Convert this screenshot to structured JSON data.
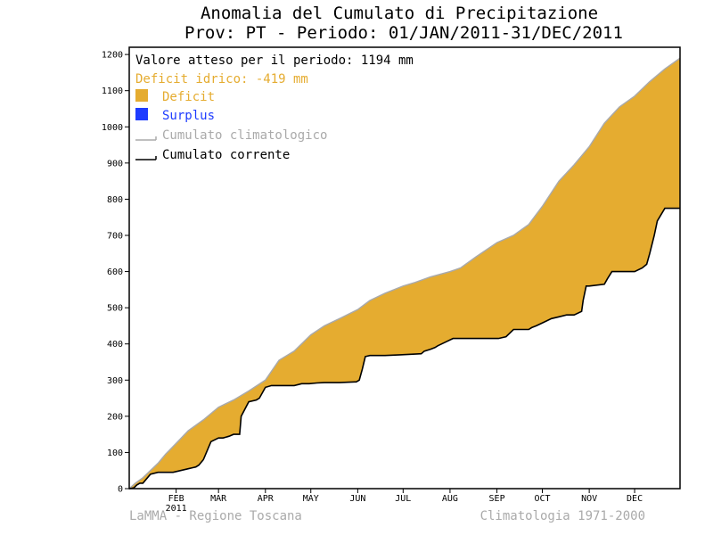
{
  "title_line1": "Anomalia del Cumulato di Precipitazione",
  "title_line2": "Prov: PT - Periodo: 01/JAN/2011-31/DEC/2011",
  "legend": {
    "expected_text": "Valore atteso per il periodo: 1194 mm",
    "deficit_text": "Deficit idrico: -419 mm",
    "deficit_label": "Deficit",
    "surplus_label": "Surplus",
    "climatological_label": "Cumulato climatologico",
    "current_label": "Cumulato corrente"
  },
  "footer_left": "LaMMA - Regione Toscana",
  "footer_right": "Climatologia 1971-2000",
  "colors": {
    "deficit": "#E5AC30",
    "surplus": "#1E3CFF",
    "climatological": "#AAAAAA",
    "current": "#000000",
    "deficit_text": "#E5AC30",
    "surplus_text": "#1E3CFF",
    "climatological_text": "#AAAAAA",
    "footer_text": "#AAAAAA"
  },
  "chart_data": {
    "type": "area",
    "title": "Anomalia del Cumulato di Precipitazione",
    "subtitle": "Prov: PT - Periodo: 01/JAN/2011-31/DEC/2011",
    "xlabel": "",
    "ylabel": "",
    "xlim": [
      1,
      365
    ],
    "ylim": [
      0,
      1220
    ],
    "y_ticks": [
      0,
      100,
      200,
      300,
      400,
      500,
      600,
      700,
      800,
      900,
      1000,
      1100,
      1200
    ],
    "x_ticks": [
      {
        "day": 32,
        "label": "FEB"
      },
      {
        "day": 60,
        "label": "MAR"
      },
      {
        "day": 91,
        "label": "APR"
      },
      {
        "day": 121,
        "label": "MAY"
      },
      {
        "day": 152,
        "label": "JUN"
      },
      {
        "day": 182,
        "label": "JUL"
      },
      {
        "day": 213,
        "label": "AUG"
      },
      {
        "day": 244,
        "label": "SEP"
      },
      {
        "day": 274,
        "label": "OCT"
      },
      {
        "day": 305,
        "label": "NOV"
      },
      {
        "day": 335,
        "label": "DEC"
      }
    ],
    "x_year_label": "2011",
    "expected_total_mm": 1194,
    "deficit_mm": -419,
    "grid": false,
    "legend_position": "top-left",
    "series": [
      {
        "name": "Cumulato climatologico",
        "x": [
          1,
          5,
          10,
          15,
          20,
          25,
          32,
          40,
          50,
          60,
          70,
          80,
          91,
          100,
          110,
          121,
          130,
          140,
          152,
          160,
          170,
          182,
          190,
          200,
          213,
          220,
          230,
          244,
          255,
          265,
          274,
          285,
          295,
          305,
          315,
          325,
          335,
          345,
          355,
          365
        ],
        "y": [
          0,
          15,
          30,
          50,
          70,
          95,
          125,
          160,
          190,
          225,
          245,
          270,
          300,
          355,
          380,
          425,
          450,
          470,
          495,
          520,
          540,
          560,
          570,
          585,
          600,
          610,
          640,
          680,
          700,
          730,
          780,
          850,
          895,
          945,
          1010,
          1055,
          1085,
          1125,
          1160,
          1190
        ]
      },
      {
        "name": "Cumulato corrente",
        "x": [
          1,
          4,
          6,
          8,
          10,
          15,
          20,
          25,
          30,
          35,
          40,
          43,
          45,
          47,
          50,
          55,
          60,
          63,
          67,
          70,
          74,
          75,
          80,
          85,
          87,
          91,
          95,
          100,
          105,
          110,
          115,
          120,
          125,
          130,
          140,
          145,
          150,
          151,
          153,
          155,
          157,
          160,
          170,
          180,
          190,
          194,
          196,
          200,
          203,
          205,
          210,
          215,
          225,
          230,
          240,
          245,
          250,
          255,
          257,
          259,
          265,
          267,
          270,
          275,
          280,
          285,
          290,
          295,
          300,
          301,
          303,
          305,
          315,
          317,
          320,
          325,
          330,
          335,
          340,
          343,
          345,
          348,
          350,
          355,
          360,
          365
        ],
        "y": [
          0,
          2,
          10,
          15,
          15,
          40,
          45,
          45,
          45,
          50,
          55,
          58,
          60,
          65,
          80,
          130,
          140,
          140,
          145,
          150,
          150,
          200,
          240,
          245,
          250,
          280,
          285,
          285,
          285,
          285,
          290,
          290,
          292,
          293,
          293,
          294,
          295,
          295,
          300,
          330,
          365,
          368,
          368,
          370,
          372,
          373,
          380,
          385,
          390,
          395,
          405,
          415,
          415,
          415,
          415,
          415,
          420,
          440,
          440,
          440,
          440,
          445,
          450,
          460,
          470,
          475,
          480,
          480,
          490,
          520,
          560,
          560,
          565,
          580,
          600,
          600,
          600,
          600,
          610,
          620,
          650,
          700,
          740,
          775,
          775,
          775
        ]
      }
    ]
  }
}
